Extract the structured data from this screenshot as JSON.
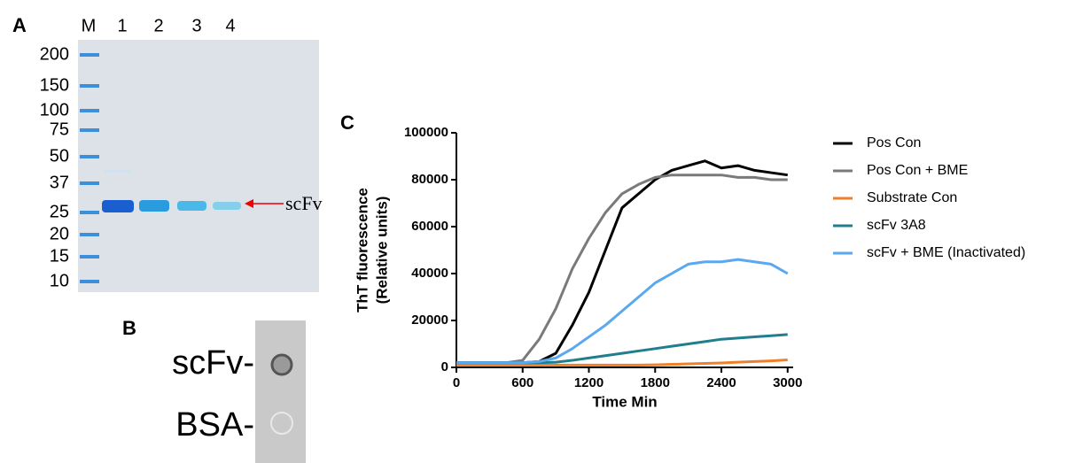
{
  "panel_labels": [
    "A",
    "B",
    "C"
  ],
  "panel_a": {
    "lanes": [
      "M",
      "1",
      "2",
      "3",
      "4"
    ],
    "markers": [
      "200",
      "150",
      "100",
      "75",
      "50",
      "37",
      "25",
      "20",
      "15",
      "10"
    ],
    "band_label": "scFv"
  },
  "panel_b": {
    "spots": [
      "scFv-",
      "BSA-"
    ]
  },
  "chart_data": {
    "type": "line",
    "xlabel": "Time Min",
    "ylabel": [
      "ThT fluorescence",
      "(Relative units)"
    ],
    "x": [
      0,
      150,
      300,
      450,
      600,
      750,
      900,
      1050,
      1200,
      1350,
      1500,
      1650,
      1800,
      1950,
      2100,
      2250,
      2400,
      2550,
      2700,
      2850,
      3000
    ],
    "xlim": [
      0,
      3050
    ],
    "xticks": [
      0,
      600,
      1200,
      1800,
      2400,
      3000
    ],
    "ylim": [
      0,
      100000
    ],
    "yticks": [
      0,
      20000,
      40000,
      60000,
      80000,
      100000
    ],
    "legend": "right",
    "series": [
      {
        "name": "Pos Con",
        "color": "#000000",
        "values": [
          2000,
          2000,
          2000,
          2000,
          2000,
          2500,
          6000,
          18000,
          32000,
          50000,
          68000,
          74000,
          80000,
          84000,
          86000,
          88000,
          85000,
          86000,
          84000,
          83000,
          82000
        ]
      },
      {
        "name": "Pos Con + BME",
        "color": "#7a7a7a",
        "values": [
          2000,
          2000,
          2000,
          2000,
          3000,
          12000,
          25000,
          42000,
          55000,
          66000,
          74000,
          78000,
          81000,
          82000,
          82000,
          82000,
          82000,
          81000,
          81000,
          80000,
          80000
        ]
      },
      {
        "name": "Substrate Con",
        "color": "#f07f2a",
        "values": [
          1000,
          1000,
          1000,
          1000,
          1000,
          1000,
          1000,
          1000,
          1000,
          1000,
          1000,
          1000,
          1100,
          1300,
          1500,
          1700,
          1900,
          2200,
          2500,
          2800,
          3200
        ]
      },
      {
        "name": "scFv 3A8",
        "color": "#1f7f8f",
        "values": [
          2000,
          2000,
          2000,
          2000,
          2000,
          2000,
          2200,
          3000,
          4000,
          5000,
          6000,
          7000,
          8000,
          9000,
          10000,
          11000,
          12000,
          12500,
          13000,
          13500,
          14000
        ]
      },
      {
        "name": "scFv + BME (Inactivated)",
        "color": "#5aa8ef",
        "values": [
          2000,
          2000,
          2000,
          2000,
          2000,
          2500,
          4000,
          8000,
          13000,
          18000,
          24000,
          30000,
          36000,
          40000,
          44000,
          45000,
          45000,
          46000,
          45000,
          44000,
          40000
        ]
      }
    ]
  }
}
